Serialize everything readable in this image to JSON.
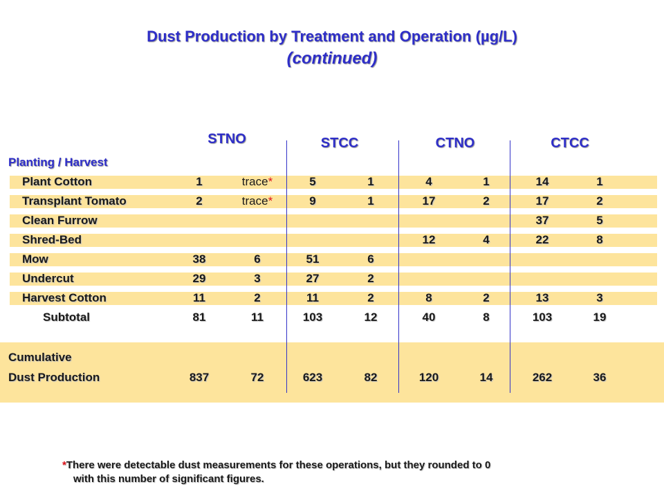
{
  "title": {
    "line1": "Dust Production by Treatment and Operation (µg/L)",
    "line2": "(continued)"
  },
  "columns": [
    "STNO",
    "STCC",
    "CTNO",
    "CTCC"
  ],
  "section_label": "Planting / Harvest",
  "rows": [
    {
      "label": "Plant Cotton",
      "values": [
        "1",
        "trace",
        "5",
        "1",
        "4",
        "1",
        "14",
        "1"
      ]
    },
    {
      "label": "Transplant Tomato",
      "values": [
        "2",
        "trace",
        "9",
        "1",
        "17",
        "2",
        "17",
        "2"
      ]
    },
    {
      "label": "Clean Furrow",
      "values": [
        "",
        "",
        "",
        "",
        "",
        "",
        "37",
        "5"
      ]
    },
    {
      "label": "Shred-Bed",
      "values": [
        "",
        "",
        "",
        "",
        "12",
        "4",
        "22",
        "8"
      ]
    },
    {
      "label": "Mow",
      "values": [
        "38",
        "6",
        "51",
        "6",
        "",
        "",
        "",
        ""
      ]
    },
    {
      "label": "Undercut",
      "values": [
        "29",
        "3",
        "27",
        "2",
        "",
        "",
        "",
        ""
      ]
    },
    {
      "label": "Harvest Cotton",
      "values": [
        "11",
        "2",
        "11",
        "2",
        "8",
        "2",
        "13",
        "3"
      ]
    }
  ],
  "subtotal": {
    "label": "Subtotal",
    "values": [
      "81",
      "11",
      "103",
      "12",
      "40",
      "8",
      "103",
      "19"
    ]
  },
  "cumulative": {
    "label_line1": "Cumulative",
    "label_line2": "Dust Production",
    "values": [
      "837",
      "72",
      "623",
      "82",
      "120",
      "14",
      "262",
      "36"
    ]
  },
  "trace_marker": "*",
  "footnote": {
    "marker": "*",
    "line1": "There were detectable dust measurements for these operations, but they rounded to 0",
    "line2": "with this number of significant figures."
  },
  "colors": {
    "title": "#2e2ec8",
    "band": "#fde49c",
    "star": "#e0141c",
    "divider": "#3030c8"
  }
}
